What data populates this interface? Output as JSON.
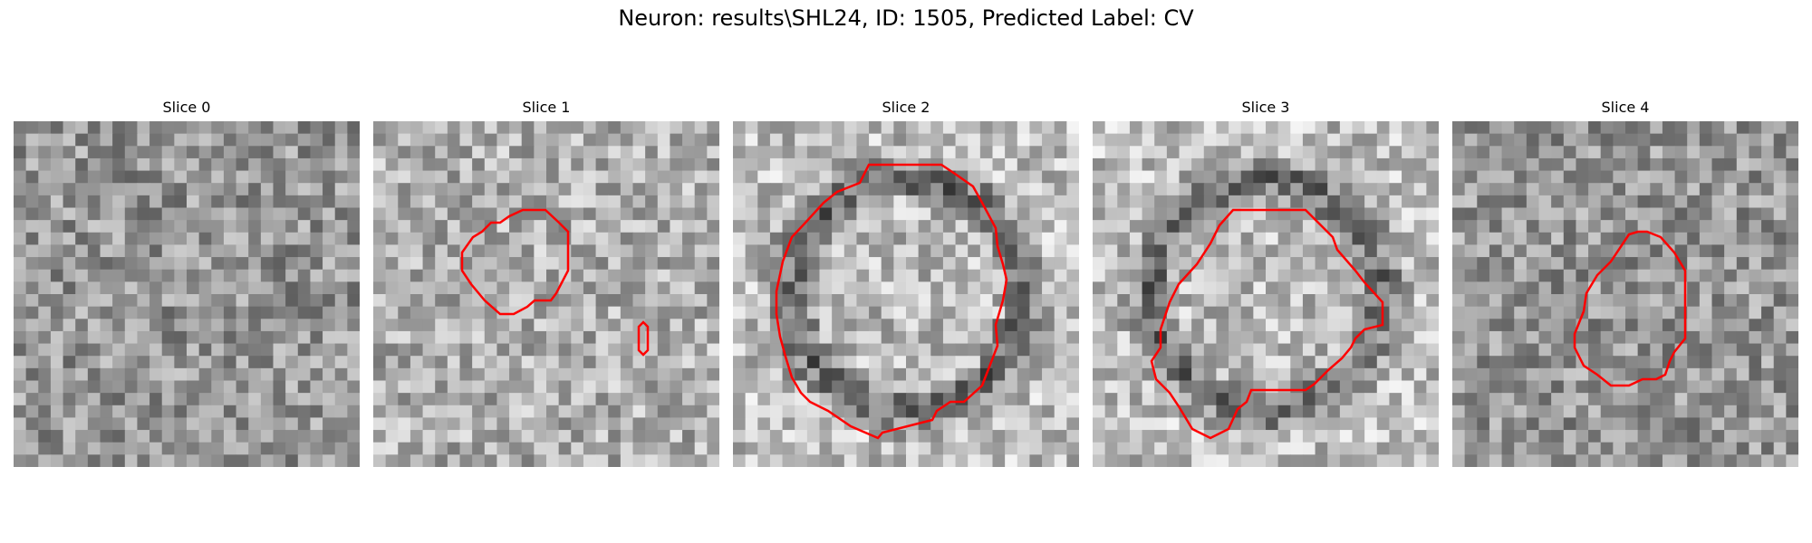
{
  "figure": {
    "title": "Neuron: results\\SHL24, ID: 1505, Predicted Label: CV"
  },
  "panels": [
    {
      "title": "Slice 0",
      "has_contour": false,
      "bright_center": false,
      "ring": false,
      "seed": 11
    },
    {
      "title": "Slice 1",
      "has_contour": true,
      "bright_center": true,
      "ring": false,
      "seed": 23
    },
    {
      "title": "Slice 2",
      "has_contour": true,
      "bright_center": true,
      "ring": true,
      "seed": 37
    },
    {
      "title": "Slice 3",
      "has_contour": true,
      "bright_center": false,
      "ring": true,
      "seed": 41
    },
    {
      "title": "Slice 4",
      "has_contour": true,
      "bright_center": false,
      "ring": false,
      "seed": 53
    }
  ],
  "contour_color": "#ff0000",
  "colormap": "gray"
}
